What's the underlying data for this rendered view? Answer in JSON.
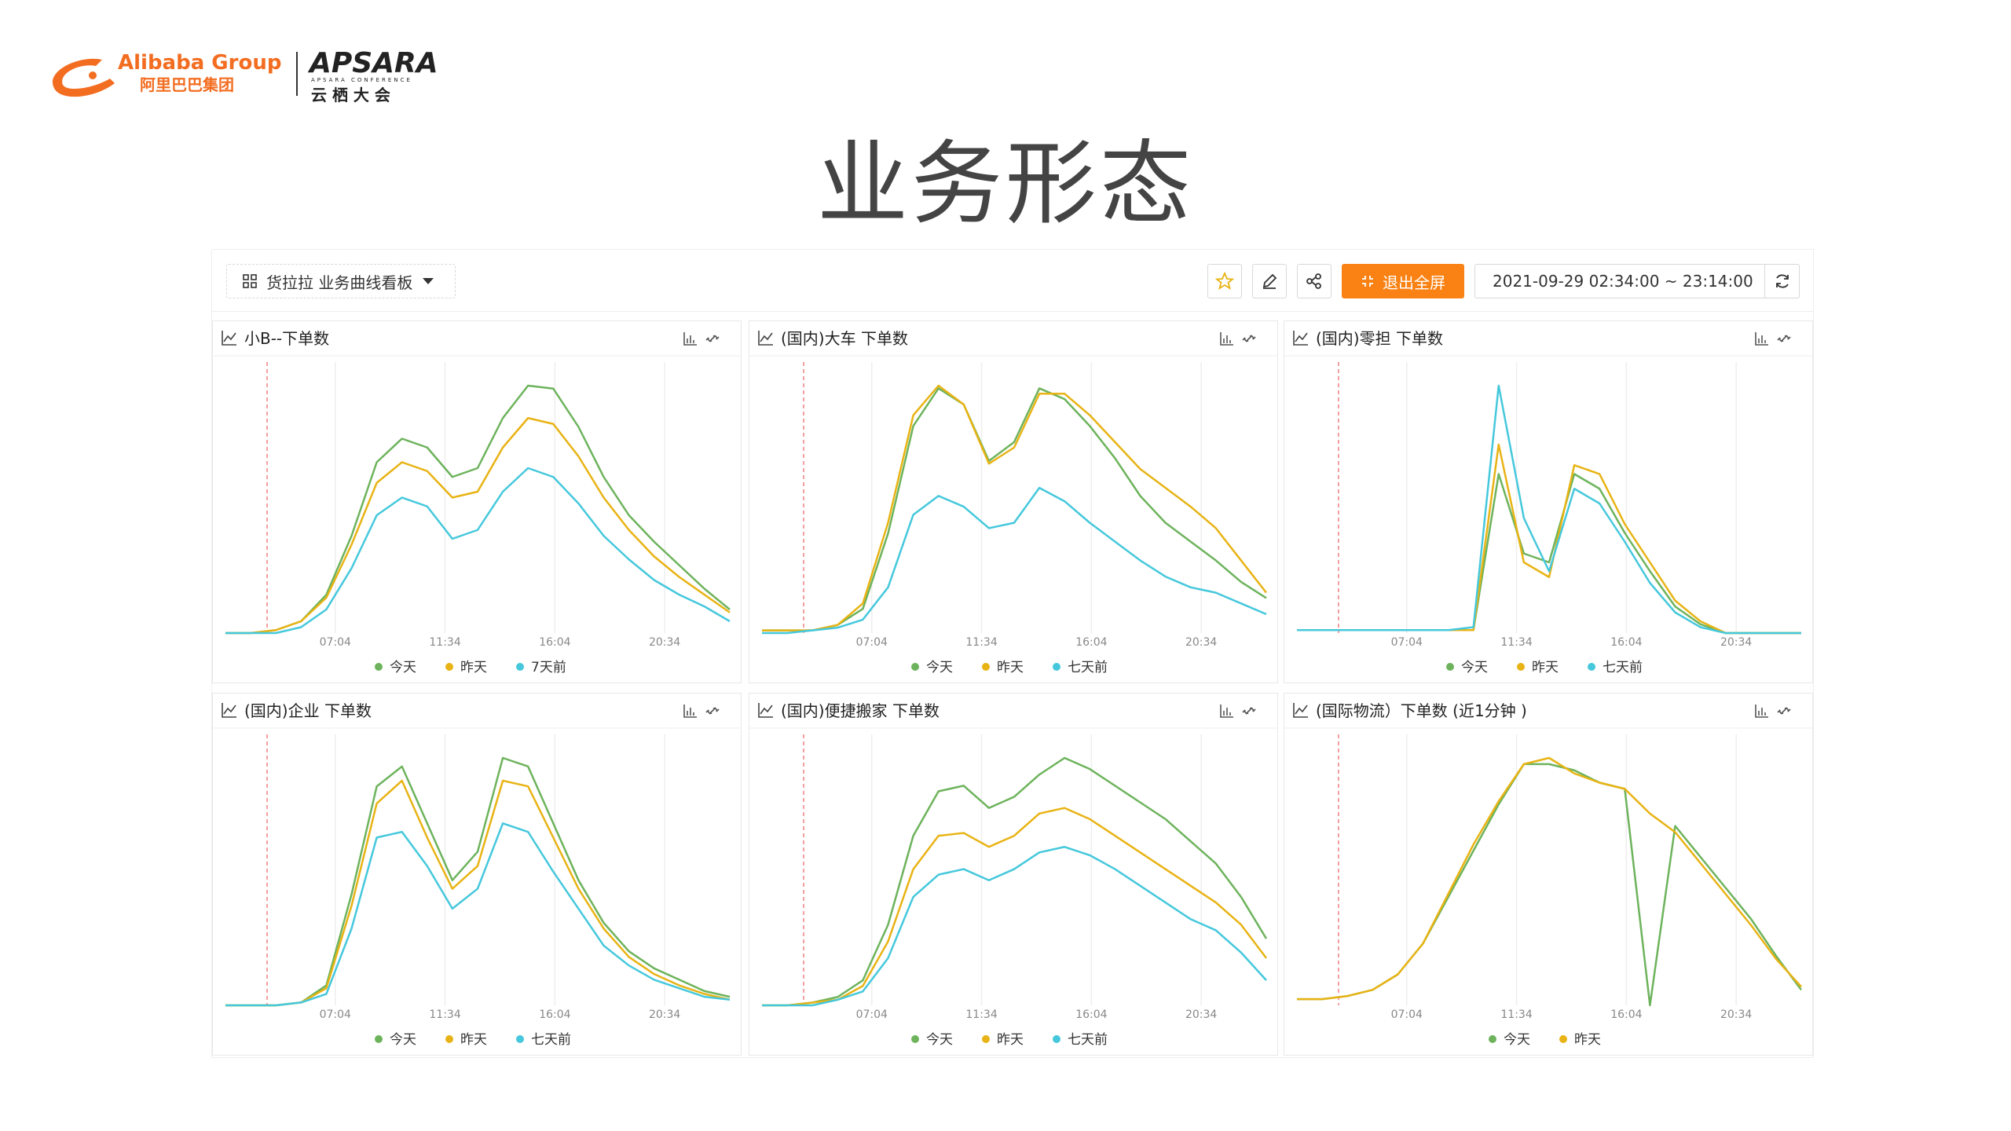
{
  "logo": {
    "alibaba": "Alibaba Group",
    "alibaba_cn": "阿里巴巴集团",
    "apsara": "APSARA",
    "apsara_sub": "APSARA CONFERENCE",
    "apsara_cn": "云 栖 大 会"
  },
  "title": "业务形态",
  "toolbar": {
    "dashboard": "货拉拉 业务曲线看板",
    "exit_fullscreen": "退出全屏",
    "time_range": "2021-09-29 02:34:00 ~ 23:14:00"
  },
  "chart_data": [
    {
      "type": "line",
      "title": "小B--下单数",
      "x": [
        154,
        216,
        278,
        340,
        402,
        464,
        526,
        588,
        650,
        712,
        774,
        836,
        898,
        960,
        1022,
        1084,
        1146,
        1208,
        1270,
        1332,
        1394
      ],
      "xlim": [
        154,
        1394
      ],
      "xticks": [
        {
          "value": 424,
          "label": "07:04"
        },
        {
          "value": 694,
          "label": "11:34"
        },
        {
          "value": 964,
          "label": "16:04"
        },
        {
          "value": 1234,
          "label": "20:34"
        }
      ],
      "grid": true,
      "series": [
        {
          "name": "今天",
          "color": "#6db35c",
          "values": [
            2,
            2,
            3,
            6,
            15,
            35,
            60,
            68,
            65,
            55,
            58,
            75,
            86,
            85,
            72,
            55,
            42,
            33,
            25,
            17,
            10
          ]
        },
        {
          "name": "昨天",
          "color": "#e8b314",
          "values": [
            2,
            2,
            3,
            6,
            14,
            32,
            53,
            60,
            57,
            48,
            50,
            65,
            75,
            73,
            62,
            48,
            37,
            28,
            21,
            15,
            9
          ]
        },
        {
          "name": "7天前",
          "color": "#45c8dc",
          "values": [
            2,
            2,
            2,
            4,
            10,
            24,
            42,
            48,
            45,
            34,
            37,
            50,
            58,
            55,
            46,
            35,
            27,
            20,
            15,
            11,
            6
          ]
        }
      ]
    },
    {
      "type": "line",
      "title": "(国内)大车 下单数",
      "x": [
        154,
        216,
        278,
        340,
        402,
        464,
        526,
        588,
        650,
        712,
        774,
        836,
        898,
        960,
        1022,
        1084,
        1146,
        1208,
        1270,
        1332,
        1394
      ],
      "xlim": [
        154,
        1394
      ],
      "xticks": [
        {
          "value": 424,
          "label": "07:04"
        },
        {
          "value": 694,
          "label": "11:34"
        },
        {
          "value": 964,
          "label": "16:04"
        },
        {
          "value": 1234,
          "label": "20:34"
        }
      ],
      "grid": true,
      "series": [
        {
          "name": "今天",
          "color": "#6db35c",
          "values": [
            2,
            2,
            2,
            4,
            10,
            38,
            78,
            92,
            86,
            65,
            72,
            92,
            88,
            78,
            66,
            52,
            42,
            35,
            28,
            20,
            14
          ]
        },
        {
          "name": "昨天",
          "color": "#e8b314",
          "values": [
            2,
            2,
            2,
            4,
            12,
            42,
            82,
            93,
            86,
            64,
            70,
            90,
            90,
            82,
            72,
            62,
            55,
            48,
            40,
            28,
            16
          ]
        },
        {
          "name": "七天前",
          "color": "#45c8dc",
          "values": [
            1,
            1,
            2,
            3,
            6,
            18,
            45,
            52,
            48,
            40,
            42,
            55,
            50,
            42,
            35,
            28,
            22,
            18,
            16,
            12,
            8
          ]
        }
      ]
    },
    {
      "type": "line",
      "title": "(国内)零担 下单数",
      "x": [
        154,
        216,
        278,
        340,
        402,
        464,
        526,
        588,
        650,
        712,
        774,
        836,
        898,
        960,
        1022,
        1084,
        1146,
        1208,
        1270,
        1332,
        1394
      ],
      "xlim": [
        154,
        1394
      ],
      "xticks": [
        {
          "value": 424,
          "label": "07:04"
        },
        {
          "value": 694,
          "label": "11:34"
        },
        {
          "value": 964,
          "label": "16:04"
        },
        {
          "value": 1234,
          "label": "20:34"
        }
      ],
      "grid": true,
      "series": [
        {
          "name": "今天",
          "color": "#6db35c",
          "values": [
            2,
            2,
            2,
            2,
            2,
            2,
            2,
            2,
            55,
            28,
            25,
            55,
            50,
            35,
            22,
            10,
            4,
            1,
            1,
            1,
            1
          ]
        },
        {
          "name": "昨天",
          "color": "#e8b314",
          "values": [
            2,
            2,
            2,
            2,
            2,
            2,
            2,
            2,
            65,
            25,
            20,
            58,
            55,
            38,
            25,
            12,
            5,
            1,
            1,
            1,
            1
          ]
        },
        {
          "name": "七天前",
          "color": "#45c8dc",
          "values": [
            2,
            2,
            2,
            2,
            2,
            2,
            2,
            3,
            85,
            40,
            22,
            50,
            45,
            32,
            18,
            8,
            3,
            1,
            1,
            1,
            1
          ]
        }
      ]
    },
    {
      "type": "line",
      "title": "(国内)企业 下单数",
      "x": [
        154,
        216,
        278,
        340,
        402,
        464,
        526,
        588,
        650,
        712,
        774,
        836,
        898,
        960,
        1022,
        1084,
        1146,
        1208,
        1270,
        1332,
        1394
      ],
      "xlim": [
        154,
        1394
      ],
      "xticks": [
        {
          "value": 424,
          "label": "07:04"
        },
        {
          "value": 694,
          "label": "11:34"
        },
        {
          "value": 964,
          "label": "16:04"
        },
        {
          "value": 1234,
          "label": "20:34"
        }
      ],
      "grid": true,
      "series": [
        {
          "name": "今天",
          "color": "#6db35c",
          "values": [
            1,
            1,
            1,
            2,
            8,
            40,
            78,
            85,
            65,
            45,
            55,
            88,
            85,
            65,
            45,
            30,
            20,
            14,
            10,
            6,
            4
          ]
        },
        {
          "name": "昨天",
          "color": "#e8b314",
          "values": [
            1,
            1,
            1,
            2,
            7,
            36,
            72,
            80,
            60,
            42,
            50,
            80,
            78,
            60,
            42,
            28,
            18,
            12,
            8,
            5,
            3
          ]
        },
        {
          "name": "七天前",
          "color": "#45c8dc",
          "values": [
            1,
            1,
            1,
            2,
            5,
            28,
            60,
            62,
            50,
            35,
            42,
            65,
            62,
            48,
            35,
            22,
            15,
            10,
            7,
            4,
            3
          ]
        }
      ]
    },
    {
      "type": "line",
      "title": "(国内)便捷搬家 下单数",
      "x": [
        154,
        216,
        278,
        340,
        402,
        464,
        526,
        588,
        650,
        712,
        774,
        836,
        898,
        960,
        1022,
        1084,
        1146,
        1208,
        1270,
        1332,
        1394
      ],
      "xlim": [
        154,
        1394
      ],
      "xticks": [
        {
          "value": 424,
          "label": "07:04"
        },
        {
          "value": 694,
          "label": "11:34"
        },
        {
          "value": 964,
          "label": "16:04"
        },
        {
          "value": 1234,
          "label": "20:34"
        }
      ],
      "grid": true,
      "series": [
        {
          "name": "今天",
          "color": "#6db35c",
          "values": [
            1,
            1,
            2,
            4,
            10,
            30,
            62,
            78,
            80,
            72,
            76,
            84,
            90,
            86,
            80,
            74,
            68,
            60,
            52,
            40,
            25
          ]
        },
        {
          "name": "昨天",
          "color": "#e8b314",
          "values": [
            1,
            1,
            2,
            3,
            8,
            24,
            50,
            62,
            63,
            58,
            62,
            70,
            72,
            68,
            62,
            56,
            50,
            44,
            38,
            30,
            18
          ]
        },
        {
          "name": "七天前",
          "color": "#45c8dc",
          "values": [
            1,
            1,
            1,
            3,
            6,
            18,
            40,
            48,
            50,
            46,
            50,
            56,
            58,
            55,
            50,
            44,
            38,
            32,
            28,
            20,
            10
          ]
        }
      ]
    },
    {
      "type": "line",
      "title": "(国际物流）下单数 (近1分钟 )",
      "x": [
        154,
        216,
        278,
        340,
        402,
        464,
        526,
        588,
        650,
        712,
        774,
        836,
        898,
        960,
        1022,
        1084,
        1146,
        1208,
        1270,
        1332,
        1394
      ],
      "xlim": [
        154,
        1394
      ],
      "xticks": [
        {
          "value": 424,
          "label": "07:04"
        },
        {
          "value": 694,
          "label": "11:34"
        },
        {
          "value": 964,
          "label": "16:04"
        },
        {
          "value": 1234,
          "label": "20:34"
        }
      ],
      "grid": true,
      "series": [
        {
          "name": "今天",
          "color": "#6db35c",
          "values": [
            2,
            2,
            3,
            5,
            10,
            20,
            35,
            50,
            65,
            78,
            78,
            76,
            72,
            70,
            0,
            58,
            48,
            38,
            28,
            16,
            5
          ]
        },
        {
          "name": "昨天",
          "color": "#e8b314",
          "values": [
            2,
            2,
            3,
            5,
            10,
            20,
            36,
            52,
            66,
            78,
            80,
            75,
            72,
            70,
            62,
            56,
            46,
            36,
            26,
            15,
            6
          ]
        }
      ]
    }
  ]
}
